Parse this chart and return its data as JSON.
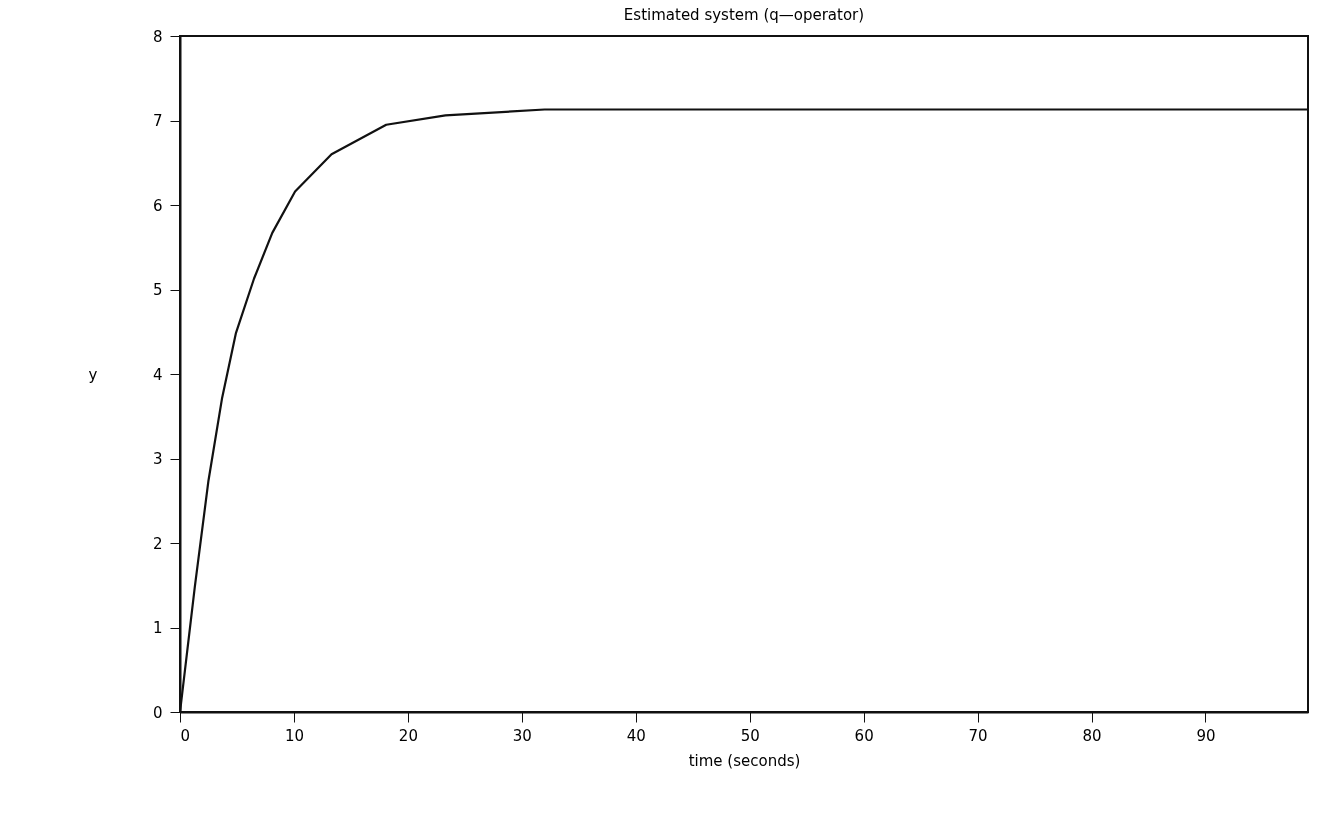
{
  "chart_data": {
    "type": "line",
    "title": "Estimated system (q—operator)",
    "xlabel": "time (seconds)",
    "ylabel": "y",
    "x": [
      0,
      1.3,
      2.5,
      3.7,
      4.9,
      6.5,
      8.1,
      10.1,
      13.3,
      18.1,
      23.3,
      32,
      45,
      60,
      75,
      90,
      99
    ],
    "series": [
      {
        "color": "#111111",
        "values": [
          0,
          1.48,
          2.74,
          3.72,
          4.48,
          5.13,
          5.67,
          6.16,
          6.6,
          6.95,
          7.06,
          7.13,
          7.13,
          7.13,
          7.13,
          7.13,
          7.13
        ]
      }
    ],
    "xlim": [
      0,
      99
    ],
    "xticks": [
      0,
      10,
      20,
      30,
      40,
      50,
      60,
      70,
      80,
      90
    ],
    "ylim": [
      0,
      8
    ],
    "yticks": [
      0,
      1,
      2,
      3,
      4,
      5,
      6,
      7,
      8
    ],
    "grid": false,
    "line_style": "solid"
  }
}
